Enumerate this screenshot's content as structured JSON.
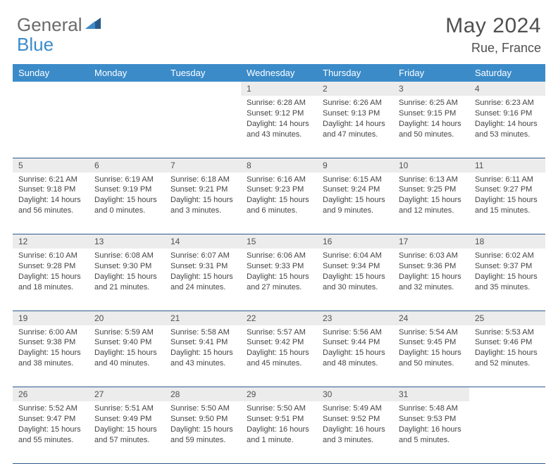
{
  "logo": {
    "general": "General",
    "blue": "Blue"
  },
  "title": "May 2024",
  "location": "Rue, France",
  "colors": {
    "header_bg": "#3b8bc9",
    "header_text": "#ffffff",
    "daynum_bg": "#ececec",
    "border": "#2a5a8a",
    "logo_gray": "#6b6b6b",
    "logo_blue": "#3b8bc9",
    "text": "#444444"
  },
  "weekdays": [
    "Sunday",
    "Monday",
    "Tuesday",
    "Wednesday",
    "Thursday",
    "Friday",
    "Saturday"
  ],
  "weeks": [
    {
      "nums": [
        "",
        "",
        "",
        "1",
        "2",
        "3",
        "4"
      ],
      "cells": [
        null,
        null,
        null,
        {
          "sunrise": "6:28 AM",
          "sunset": "9:12 PM",
          "daylight": "14 hours and 43 minutes."
        },
        {
          "sunrise": "6:26 AM",
          "sunset": "9:13 PM",
          "daylight": "14 hours and 47 minutes."
        },
        {
          "sunrise": "6:25 AM",
          "sunset": "9:15 PM",
          "daylight": "14 hours and 50 minutes."
        },
        {
          "sunrise": "6:23 AM",
          "sunset": "9:16 PM",
          "daylight": "14 hours and 53 minutes."
        }
      ]
    },
    {
      "nums": [
        "5",
        "6",
        "7",
        "8",
        "9",
        "10",
        "11"
      ],
      "cells": [
        {
          "sunrise": "6:21 AM",
          "sunset": "9:18 PM",
          "daylight": "14 hours and 56 minutes."
        },
        {
          "sunrise": "6:19 AM",
          "sunset": "9:19 PM",
          "daylight": "15 hours and 0 minutes."
        },
        {
          "sunrise": "6:18 AM",
          "sunset": "9:21 PM",
          "daylight": "15 hours and 3 minutes."
        },
        {
          "sunrise": "6:16 AM",
          "sunset": "9:23 PM",
          "daylight": "15 hours and 6 minutes."
        },
        {
          "sunrise": "6:15 AM",
          "sunset": "9:24 PM",
          "daylight": "15 hours and 9 minutes."
        },
        {
          "sunrise": "6:13 AM",
          "sunset": "9:25 PM",
          "daylight": "15 hours and 12 minutes."
        },
        {
          "sunrise": "6:11 AM",
          "sunset": "9:27 PM",
          "daylight": "15 hours and 15 minutes."
        }
      ]
    },
    {
      "nums": [
        "12",
        "13",
        "14",
        "15",
        "16",
        "17",
        "18"
      ],
      "cells": [
        {
          "sunrise": "6:10 AM",
          "sunset": "9:28 PM",
          "daylight": "15 hours and 18 minutes."
        },
        {
          "sunrise": "6:08 AM",
          "sunset": "9:30 PM",
          "daylight": "15 hours and 21 minutes."
        },
        {
          "sunrise": "6:07 AM",
          "sunset": "9:31 PM",
          "daylight": "15 hours and 24 minutes."
        },
        {
          "sunrise": "6:06 AM",
          "sunset": "9:33 PM",
          "daylight": "15 hours and 27 minutes."
        },
        {
          "sunrise": "6:04 AM",
          "sunset": "9:34 PM",
          "daylight": "15 hours and 30 minutes."
        },
        {
          "sunrise": "6:03 AM",
          "sunset": "9:36 PM",
          "daylight": "15 hours and 32 minutes."
        },
        {
          "sunrise": "6:02 AM",
          "sunset": "9:37 PM",
          "daylight": "15 hours and 35 minutes."
        }
      ]
    },
    {
      "nums": [
        "19",
        "20",
        "21",
        "22",
        "23",
        "24",
        "25"
      ],
      "cells": [
        {
          "sunrise": "6:00 AM",
          "sunset": "9:38 PM",
          "daylight": "15 hours and 38 minutes."
        },
        {
          "sunrise": "5:59 AM",
          "sunset": "9:40 PM",
          "daylight": "15 hours and 40 minutes."
        },
        {
          "sunrise": "5:58 AM",
          "sunset": "9:41 PM",
          "daylight": "15 hours and 43 minutes."
        },
        {
          "sunrise": "5:57 AM",
          "sunset": "9:42 PM",
          "daylight": "15 hours and 45 minutes."
        },
        {
          "sunrise": "5:56 AM",
          "sunset": "9:44 PM",
          "daylight": "15 hours and 48 minutes."
        },
        {
          "sunrise": "5:54 AM",
          "sunset": "9:45 PM",
          "daylight": "15 hours and 50 minutes."
        },
        {
          "sunrise": "5:53 AM",
          "sunset": "9:46 PM",
          "daylight": "15 hours and 52 minutes."
        }
      ]
    },
    {
      "nums": [
        "26",
        "27",
        "28",
        "29",
        "30",
        "31",
        ""
      ],
      "cells": [
        {
          "sunrise": "5:52 AM",
          "sunset": "9:47 PM",
          "daylight": "15 hours and 55 minutes."
        },
        {
          "sunrise": "5:51 AM",
          "sunset": "9:49 PM",
          "daylight": "15 hours and 57 minutes."
        },
        {
          "sunrise": "5:50 AM",
          "sunset": "9:50 PM",
          "daylight": "15 hours and 59 minutes."
        },
        {
          "sunrise": "5:50 AM",
          "sunset": "9:51 PM",
          "daylight": "16 hours and 1 minute."
        },
        {
          "sunrise": "5:49 AM",
          "sunset": "9:52 PM",
          "daylight": "16 hours and 3 minutes."
        },
        {
          "sunrise": "5:48 AM",
          "sunset": "9:53 PM",
          "daylight": "16 hours and 5 minutes."
        },
        null
      ]
    }
  ],
  "labels": {
    "sunrise": "Sunrise:",
    "sunset": "Sunset:",
    "daylight": "Daylight:"
  }
}
